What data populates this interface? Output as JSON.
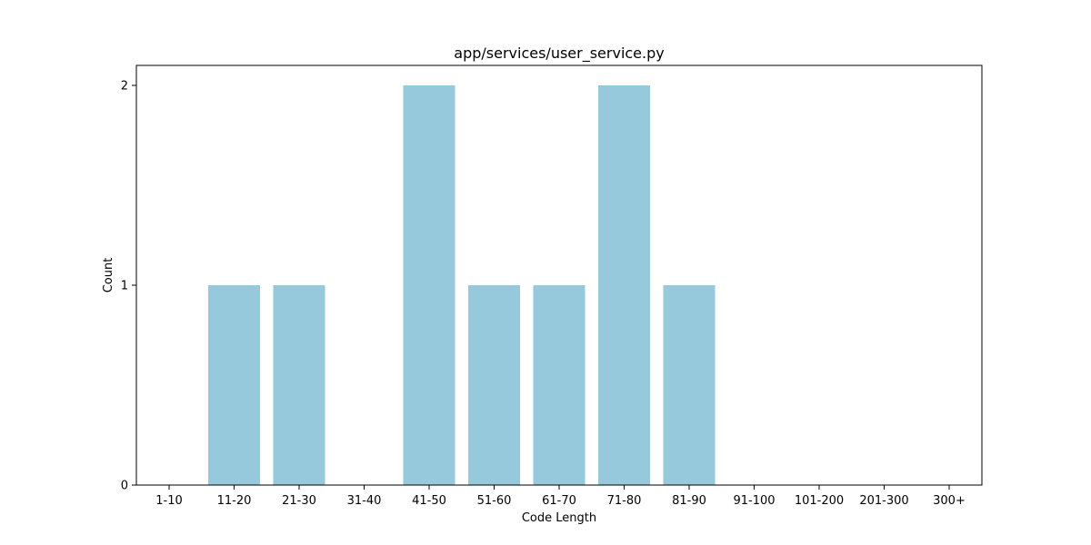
{
  "chart_data": {
    "type": "bar",
    "title": "app/services/user_service.py",
    "xlabel": "Code Length",
    "ylabel": "Count",
    "categories": [
      "1-10",
      "11-20",
      "21-30",
      "31-40",
      "41-50",
      "51-60",
      "61-70",
      "71-80",
      "81-90",
      "91-100",
      "101-200",
      "201-300",
      "300+"
    ],
    "values": [
      0,
      1,
      1,
      0,
      2,
      1,
      1,
      2,
      1,
      0,
      0,
      0,
      0
    ],
    "ylim": [
      0,
      2.1
    ],
    "yticks": [
      "0",
      "1",
      "2"
    ],
    "bar_color": "#96c9dc",
    "grid": false,
    "legend": "none"
  }
}
